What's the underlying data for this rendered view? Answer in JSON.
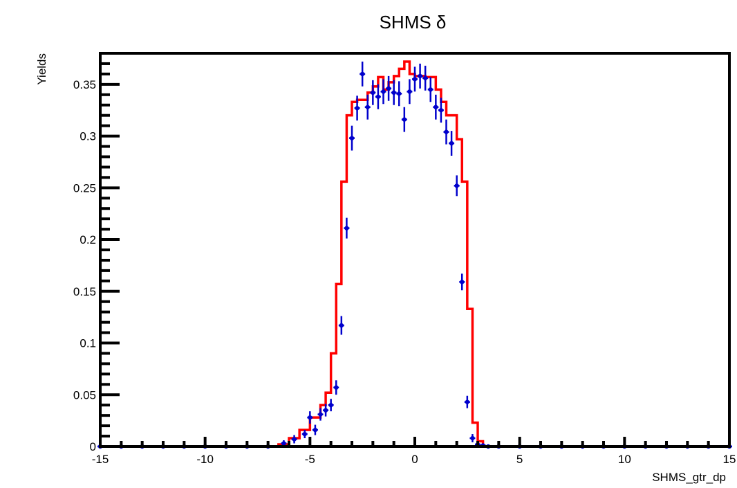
{
  "chart_data": {
    "type": "histogram",
    "title": "SHMS δ",
    "xlabel": "SHMS_gtr_dp",
    "ylabel": "Yields",
    "xlim": [
      -15,
      15
    ],
    "ylim": [
      0,
      0.38
    ],
    "x_ticks": [
      -15,
      -10,
      -5,
      0,
      5,
      10,
      15
    ],
    "x_tick_labels": [
      "-15",
      "-10",
      "-5",
      "0",
      "5",
      "10",
      "15"
    ],
    "y_ticks": [
      0,
      0.05,
      0.1,
      0.15,
      0.2,
      0.25,
      0.3,
      0.35
    ],
    "y_tick_labels": [
      "0",
      "0.05",
      "0.1",
      "0.15",
      "0.2",
      "0.25",
      "0.3",
      "0.35"
    ],
    "grid": false,
    "legend": "none",
    "series": [
      {
        "kind": "step",
        "color": "#ff0000",
        "edges": [
          -15,
          -6.5,
          -6.0,
          -5.5,
          -5.0,
          -4.5,
          -4.25,
          -4.0,
          -3.75,
          -3.5,
          -3.25,
          -3.0,
          -2.75,
          -2.5,
          -2.25,
          -2.0,
          -1.75,
          -1.5,
          -1.25,
          -1.0,
          -0.75,
          -0.5,
          -0.25,
          0.0,
          0.5,
          1.0,
          1.25,
          1.5,
          2.0,
          2.25,
          2.5,
          2.75,
          3.0,
          3.25,
          3.5,
          15
        ],
        "values": [
          0,
          0.002,
          0.008,
          0.016,
          0.028,
          0.04,
          0.052,
          0.09,
          0.157,
          0.256,
          0.32,
          0.333,
          0.335,
          0.335,
          0.342,
          0.348,
          0.357,
          0.345,
          0.352,
          0.358,
          0.365,
          0.372,
          0.36,
          0.358,
          0.357,
          0.345,
          0.333,
          0.32,
          0.297,
          0.256,
          0.133,
          0.023,
          0.005,
          0,
          0
        ]
      },
      {
        "kind": "points",
        "color": "#0000cc",
        "x": [
          -15,
          -14,
          -13,
          -12,
          -11,
          -10,
          -9,
          -8,
          -7,
          -6.25,
          -5.75,
          -5.25,
          -5.0,
          -4.75,
          -4.5,
          -4.25,
          -4.0,
          -3.75,
          -3.5,
          -3.25,
          -3.0,
          -2.75,
          -2.5,
          -2.25,
          -2.0,
          -1.75,
          -1.5,
          -1.25,
          -1.0,
          -0.75,
          -0.5,
          -0.25,
          0.0,
          0.25,
          0.5,
          0.75,
          1.0,
          1.25,
          1.5,
          1.75,
          2.0,
          2.25,
          2.5,
          2.75,
          3.0,
          3.25,
          3.5,
          4.0,
          5.0,
          6.0,
          7.0,
          8.0,
          9.0,
          10.0,
          11.0,
          12.0,
          13.0,
          14.0,
          15.0
        ],
        "y": [
          0,
          0,
          0,
          0,
          0,
          0,
          0,
          0,
          0,
          0.003,
          0.007,
          0.012,
          0.028,
          0.016,
          0.031,
          0.035,
          0.04,
          0.057,
          0.117,
          0.211,
          0.298,
          0.327,
          0.36,
          0.328,
          0.342,
          0.338,
          0.343,
          0.346,
          0.342,
          0.341,
          0.316,
          0.343,
          0.355,
          0.358,
          0.356,
          0.345,
          0.328,
          0.325,
          0.304,
          0.293,
          0.252,
          0.159,
          0.043,
          0.008,
          0.002,
          0.001,
          0,
          0,
          0,
          0,
          0,
          0,
          0,
          0,
          0,
          0,
          0,
          0,
          0
        ],
        "yerr": [
          0.002,
          0.002,
          0.002,
          0.002,
          0.002,
          0.002,
          0.002,
          0.002,
          0.002,
          0.003,
          0.004,
          0.004,
          0.006,
          0.005,
          0.006,
          0.006,
          0.006,
          0.007,
          0.009,
          0.01,
          0.012,
          0.012,
          0.012,
          0.012,
          0.012,
          0.012,
          0.012,
          0.012,
          0.012,
          0.012,
          0.012,
          0.012,
          0.012,
          0.012,
          0.012,
          0.012,
          0.012,
          0.012,
          0.012,
          0.012,
          0.01,
          0.008,
          0.006,
          0.004,
          0.003,
          0.002,
          0.002,
          0.002,
          0.002,
          0.002,
          0.002,
          0.002,
          0.002,
          0.002,
          0.002,
          0.002,
          0.002,
          0.002,
          0.002
        ]
      }
    ]
  }
}
